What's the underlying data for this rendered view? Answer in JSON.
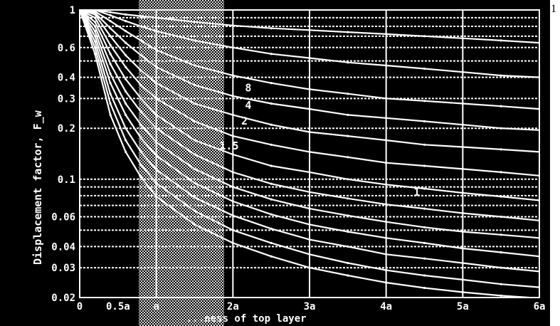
{
  "corner_note": "1",
  "colors": {
    "background": "#000000",
    "foreground": "#ffffff",
    "dither": "#bfbfbf"
  },
  "chart_data": {
    "type": "line",
    "title": "",
    "xlabel": "...ness of top layer",
    "ylabel": "Displacement factor, F_w",
    "x_scale": "linear",
    "y_scale": "log",
    "xlim": [
      0,
      6
    ],
    "ylim": [
      0.02,
      1
    ],
    "grid": true,
    "x_ticks": [
      {
        "value": 0,
        "label": "0"
      },
      {
        "value": 0.5,
        "label": "0.5a"
      },
      {
        "value": 1,
        "label": "a"
      },
      {
        "value": 2,
        "label": "2a"
      },
      {
        "value": 3,
        "label": "3a"
      },
      {
        "value": 4,
        "label": "4a"
      },
      {
        "value": 5,
        "label": "5a"
      },
      {
        "value": 6,
        "label": "6a"
      }
    ],
    "y_ticks": [
      {
        "value": 1,
        "label": "1"
      },
      {
        "value": 0.6,
        "label": "0.6"
      },
      {
        "value": 0.4,
        "label": "0.4"
      },
      {
        "value": 0.3,
        "label": "0.3"
      },
      {
        "value": 0.2,
        "label": "0.2"
      },
      {
        "value": 0.1,
        "label": "0.1"
      },
      {
        "value": 0.06,
        "label": "0.06"
      },
      {
        "value": 0.04,
        "label": "0.04"
      },
      {
        "value": 0.03,
        "label": "0.03"
      },
      {
        "value": 0.02,
        "label": "0.02"
      }
    ],
    "x_grid": [
      0,
      1,
      2,
      3,
      4,
      5,
      6
    ],
    "y_grid": [
      1,
      0.9,
      0.8,
      0.7,
      0.6,
      0.5,
      0.4,
      0.3,
      0.2,
      0.1,
      0.09,
      0.08,
      0.07,
      0.06,
      0.05,
      0.04,
      0.03,
      0.02
    ],
    "x": [
      0.2,
      0.4,
      0.6,
      0.8,
      1.0,
      1.5,
      2.0,
      2.5,
      3.0,
      3.5,
      4.0,
      4.5,
      5.0,
      5.5,
      6.0
    ],
    "series": [
      {
        "values": [
          1.0,
          0.97,
          0.94,
          0.92,
          0.9,
          0.85,
          0.81,
          0.78,
          0.76,
          0.74,
          0.72,
          0.7,
          0.68,
          0.66,
          0.64
        ]
      },
      {
        "values": [
          1.0,
          0.93,
          0.86,
          0.8,
          0.75,
          0.66,
          0.6,
          0.55,
          0.52,
          0.49,
          0.47,
          0.45,
          0.43,
          0.41,
          0.4
        ]
      },
      {
        "values": [
          0.98,
          0.86,
          0.75,
          0.66,
          0.58,
          0.47,
          0.41,
          0.37,
          0.34,
          0.32,
          0.3,
          0.29,
          0.28,
          0.27,
          0.26
        ]
      },
      {
        "values": [
          0.96,
          0.78,
          0.64,
          0.54,
          0.46,
          0.36,
          0.31,
          0.28,
          0.26,
          0.24,
          0.23,
          0.22,
          0.21,
          0.2,
          0.195
        ]
      },
      {
        "values": [
          0.94,
          0.7,
          0.54,
          0.44,
          0.37,
          0.28,
          0.24,
          0.21,
          0.19,
          0.18,
          0.17,
          0.16,
          0.155,
          0.15,
          0.145
        ]
      },
      {
        "values": [
          0.9,
          0.62,
          0.46,
          0.36,
          0.3,
          0.22,
          0.18,
          0.16,
          0.145,
          0.135,
          0.125,
          0.12,
          0.115,
          0.11,
          0.105
        ]
      },
      {
        "values": [
          0.85,
          0.55,
          0.39,
          0.3,
          0.24,
          0.17,
          0.14,
          0.12,
          0.11,
          0.1,
          0.093,
          0.088,
          0.083,
          0.079,
          0.075
        ]
      },
      {
        "values": [
          0.8,
          0.48,
          0.33,
          0.25,
          0.2,
          0.14,
          0.11,
          0.094,
          0.084,
          0.077,
          0.071,
          0.067,
          0.063,
          0.06,
          0.057
        ]
      },
      {
        "values": [
          0.75,
          0.42,
          0.28,
          0.21,
          0.165,
          0.115,
          0.09,
          0.076,
          0.067,
          0.061,
          0.056,
          0.052,
          0.049,
          0.047,
          0.045
        ]
      },
      {
        "values": [
          0.7,
          0.37,
          0.24,
          0.175,
          0.138,
          0.095,
          0.074,
          0.062,
          0.054,
          0.049,
          0.045,
          0.042,
          0.039,
          0.037,
          0.035
        ]
      },
      {
        "values": [
          0.65,
          0.32,
          0.2,
          0.145,
          0.114,
          0.078,
          0.061,
          0.051,
          0.044,
          0.04,
          0.036,
          0.034,
          0.032,
          0.03,
          0.0285
        ]
      },
      {
        "values": [
          0.6,
          0.28,
          0.17,
          0.122,
          0.095,
          0.065,
          0.05,
          0.042,
          0.036,
          0.032,
          0.029,
          0.027,
          0.0255,
          0.024,
          0.023
        ]
      },
      {
        "values": [
          0.55,
          0.24,
          0.145,
          0.103,
          0.079,
          0.054,
          0.042,
          0.035,
          0.03,
          0.027,
          0.0245,
          0.0228,
          0.0215,
          0.0205,
          0.0198
        ]
      }
    ],
    "annotations": [
      {
        "text": "8",
        "x": 2.2,
        "y": 0.33
      },
      {
        "text": "4",
        "x": 2.2,
        "y": 0.26
      },
      {
        "text": "2",
        "x": 2.15,
        "y": 0.21
      },
      {
        "text": "1.5",
        "x": 1.95,
        "y": 0.15
      },
      {
        "text": "1",
        "x": 4.4,
        "y": 0.08
      }
    ]
  }
}
